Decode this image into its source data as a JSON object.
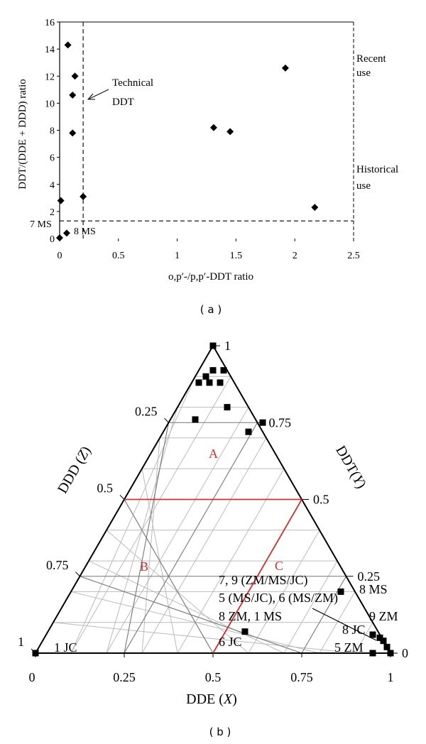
{
  "chart_data": [
    {
      "type": "scatter",
      "panel_label": "( a )",
      "xlabel": "o,p′-/p,p′-DDT ratio",
      "ylabel": "DDT/(DDE + DDD) ratio",
      "xlim": [
        0,
        2.5
      ],
      "ylim": [
        0,
        16
      ],
      "x_ticks": [
        0,
        0.5,
        1,
        1.5,
        2,
        2.5
      ],
      "x_tick_labels": [
        "0",
        "0.5",
        "1",
        "1.5",
        "2",
        "2.5"
      ],
      "y_ticks": [
        0,
        2,
        4,
        6,
        8,
        10,
        12,
        14,
        16
      ],
      "y_tick_labels": [
        "0",
        "2",
        "4",
        "6",
        "8",
        "10",
        "12",
        "14",
        "16"
      ],
      "grid": false,
      "marker": "diamond",
      "color": "#000000",
      "points": [
        {
          "x": 0.0,
          "y": 0.05
        },
        {
          "x": 0.01,
          "y": 2.8
        },
        {
          "x": 0.06,
          "y": 0.4
        },
        {
          "x": 0.07,
          "y": 14.3
        },
        {
          "x": 0.11,
          "y": 10.6
        },
        {
          "x": 0.11,
          "y": 7.8
        },
        {
          "x": 0.13,
          "y": 12.0
        },
        {
          "x": 0.2,
          "y": 3.1
        },
        {
          "x": 1.31,
          "y": 8.2
        },
        {
          "x": 1.45,
          "y": 7.9
        },
        {
          "x": 1.92,
          "y": 12.6
        },
        {
          "x": 2.17,
          "y": 2.3
        }
      ],
      "reference_lines": [
        {
          "orientation": "vertical",
          "value": 0.2,
          "style": "dashed"
        },
        {
          "orientation": "horizontal",
          "value": 1.3,
          "style": "dashed"
        }
      ],
      "annotations": [
        {
          "text_lines": [
            "Technical",
            "DDT"
          ],
          "arrow": true
        },
        {
          "text_lines": [
            "Recent",
            "use"
          ]
        },
        {
          "text_lines": [
            "Historical",
            "use"
          ]
        },
        {
          "text_lines": [
            "7 MS"
          ]
        },
        {
          "text_lines": [
            "8 MS"
          ]
        }
      ]
    },
    {
      "type": "ternary",
      "panel_label": "( b )",
      "xlabel_parts": [
        "DDE (",
        "X",
        ")"
      ],
      "left_axis_label_parts": [
        "DDD (",
        "Z",
        ")"
      ],
      "right_axis_label_parts": [
        "DDT(",
        "Y",
        ")"
      ],
      "bottom_ticks": [
        "0",
        "0.25",
        "0.5",
        "0.75",
        "1"
      ],
      "left_ticks": [
        "1",
        "0.75",
        "0.5",
        "0.25"
      ],
      "right_ticks": [
        "1",
        "0.75",
        "0.5",
        "0.25",
        "0"
      ],
      "grid": true,
      "divider_color": "#d32f2f",
      "region_labels": [
        "A",
        "B",
        "C"
      ],
      "marker": "square",
      "points": [
        {
          "x": 0.0,
          "y": 0.0
        },
        {
          "x": 0.5,
          "y": 1.0
        },
        {
          "x": 0.48,
          "y": 0.9
        },
        {
          "x": 0.5,
          "y": 0.92
        },
        {
          "x": 0.53,
          "y": 0.92
        },
        {
          "x": 0.52,
          "y": 0.88
        },
        {
          "x": 0.49,
          "y": 0.88
        },
        {
          "x": 0.46,
          "y": 0.88
        },
        {
          "x": 0.54,
          "y": 0.8
        },
        {
          "x": 0.45,
          "y": 0.76
        },
        {
          "x": 0.64,
          "y": 0.75
        },
        {
          "x": 0.6,
          "y": 0.72
        },
        {
          "x": 0.86,
          "y": 0.2
        },
        {
          "x": 0.59,
          "y": 0.07
        },
        {
          "x": 0.95,
          "y": 0.06
        },
        {
          "x": 0.97,
          "y": 0.05
        },
        {
          "x": 0.98,
          "y": 0.04
        },
        {
          "x": 0.99,
          "y": 0.02
        },
        {
          "x": 1.0,
          "y": 0.0
        },
        {
          "x": 0.95,
          "y": 0.0
        }
      ],
      "annotations": [
        "7, 9 (ZM/MS/JC)",
        "5 (MS/JC), 6 (MS/ZM)",
        "8 ZM, 1 MS",
        "6 JC",
        "1 JC",
        "8 MS",
        "9 ZM",
        "8 JC",
        "5 ZM"
      ]
    }
  ]
}
